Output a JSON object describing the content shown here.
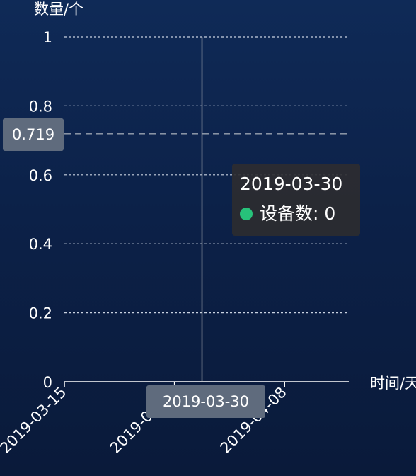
{
  "chart_data": {
    "type": "line",
    "ylabel": "数量/个",
    "xlabel": "时间/天",
    "ylim": [
      0,
      1
    ],
    "yticks": [
      "0",
      "0.2",
      "0.4",
      "0.6",
      "0.8",
      "1"
    ],
    "xlim": [
      "2019-03-15",
      "2019-04-15"
    ],
    "xticks": [
      "2019-03-15",
      "2019-03-27",
      "2019-04-08"
    ],
    "grid": true,
    "series": [
      {
        "name": "设备数",
        "color": "#27c27a",
        "x": [
          "2019-03-30"
        ],
        "y": [
          0
        ]
      }
    ],
    "crosshair": {
      "x": "2019-03-30",
      "y": 0.719
    },
    "tooltip": {
      "title": "2019-03-30",
      "series": "设备数",
      "value": 0
    },
    "axis_pointer": {
      "x_label": "2019-03-30",
      "y_label": "0.719"
    }
  }
}
